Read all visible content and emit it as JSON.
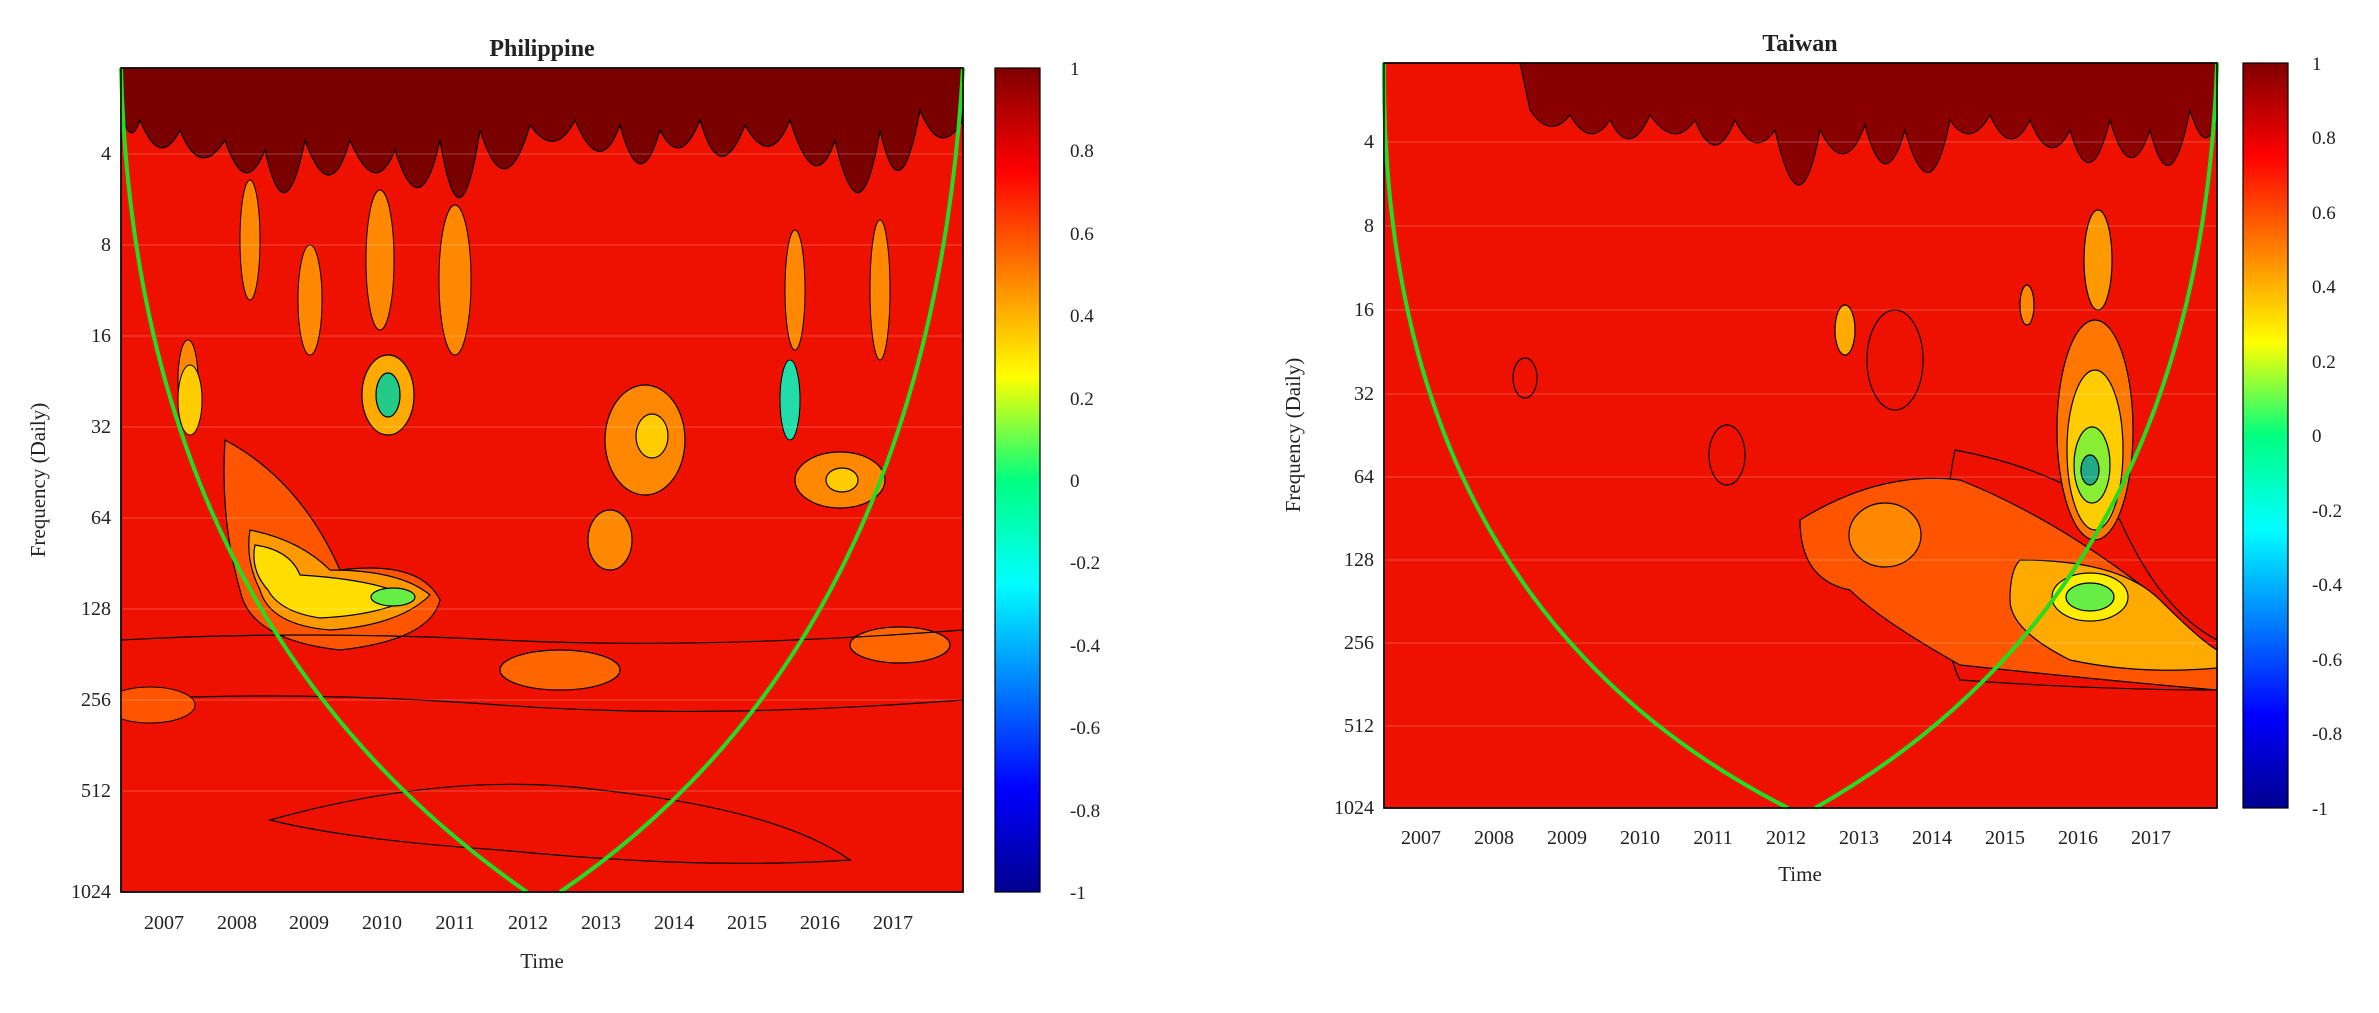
{
  "chart_data": [
    {
      "type": "heatmap",
      "title": "Philippine",
      "xlabel": "Time",
      "ylabel": "Frequency (Daily)",
      "x_ticks": [
        "2007",
        "2008",
        "2009",
        "2010",
        "2011",
        "2012",
        "2013",
        "2014",
        "2015",
        "2016",
        "2017"
      ],
      "y_ticks": [
        "4",
        "8",
        "16",
        "32",
        "64",
        "128",
        "256",
        "512",
        "1024"
      ],
      "y_scale": "log2",
      "y_range": [
        2,
        1024
      ],
      "x_range": [
        2006.3,
        2018.0
      ],
      "colorbar": {
        "min": -1,
        "max": 1,
        "ticks": [
          "1",
          "0.8",
          "0.6",
          "0.4",
          "0.2",
          "0",
          "-0.2",
          "-0.4",
          "-0.6",
          "-0.8",
          "-1"
        ]
      },
      "colormap": "jet",
      "background_value": 0.85,
      "grid": true,
      "cone_of_influence_color": "#22dd22",
      "regions": [
        {
          "x": 2009.3,
          "y": 105,
          "value": 0.25
        },
        {
          "x": 2010.2,
          "y": 112,
          "value": 0.15
        },
        {
          "x": 2010.1,
          "y": 27,
          "value": 0.0
        },
        {
          "x": 2013.7,
          "y": 34,
          "value": 0.3
        },
        {
          "x": 2016.5,
          "y": 48,
          "value": 0.5
        },
        {
          "x": 2012.6,
          "y": 200,
          "value": 0.65
        },
        {
          "x": 2007.4,
          "y": 25,
          "value": 0.4
        },
        {
          "x": 2015.7,
          "y": 25,
          "value": 0.1
        }
      ]
    },
    {
      "type": "heatmap",
      "title": "Taiwan",
      "xlabel": "Time",
      "ylabel": "Frequency (Daily)",
      "x_ticks": [
        "2007",
        "2008",
        "2009",
        "2010",
        "2011",
        "2012",
        "2013",
        "2014",
        "2015",
        "2016",
        "2017"
      ],
      "y_ticks": [
        "4",
        "8",
        "16",
        "32",
        "64",
        "128",
        "256",
        "512",
        "1024"
      ],
      "y_scale": "log2",
      "y_range": [
        2,
        1024
      ],
      "x_range": [
        2006.5,
        2017.9
      ],
      "colorbar": {
        "min": -1,
        "max": 1,
        "ticks": [
          "1",
          "0.8",
          "0.6",
          "0.4",
          "0.2",
          "0",
          "-0.2",
          "-0.4",
          "-0.6",
          "-0.8",
          "-1"
        ]
      },
      "colormap": "jet",
      "background_value": 0.85,
      "grid": true,
      "cone_of_influence_color": "#22dd22",
      "regions": [
        {
          "x": 2016.3,
          "y": 60,
          "value": 0.05
        },
        {
          "x": 2016.3,
          "y": 165,
          "value": 0.1
        },
        {
          "x": 2016.7,
          "y": 230,
          "value": 0.45
        },
        {
          "x": 2013.7,
          "y": 95,
          "value": 0.5
        },
        {
          "x": 2016.5,
          "y": 8,
          "value": 0.3
        },
        {
          "x": 2013.5,
          "y": 20,
          "value": 0.6
        }
      ]
    }
  ]
}
